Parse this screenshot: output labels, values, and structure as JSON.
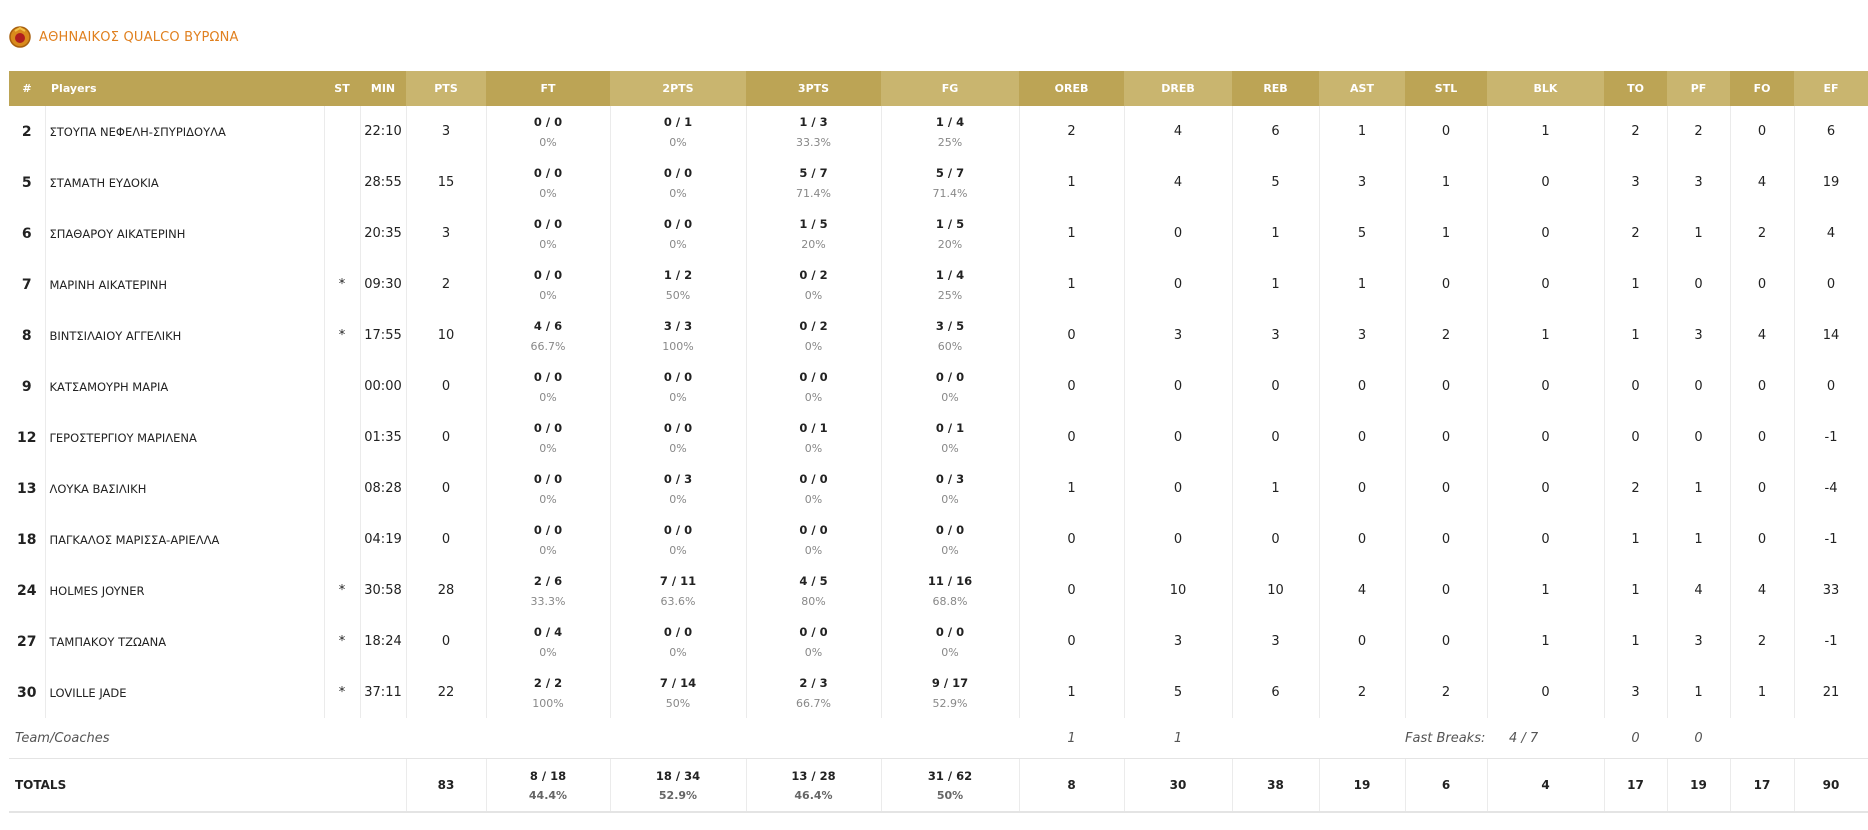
{
  "header": {
    "team": "ΑΘΗΝΑΙΚΟΣ QUALCO ΒΥΡΩΝΑ"
  },
  "table": {
    "columns": [
      "#",
      "Players",
      "ST",
      "MIN",
      "PTS",
      "FT",
      "2PTS",
      "3PTS",
      "FG",
      "OREB",
      "DREB",
      "REB",
      "AST",
      "STL",
      "BLK",
      "TO",
      "PF",
      "FO",
      "EF"
    ],
    "rows": [
      [
        "2",
        "ΣΤΟΥΠΑ ΝΕΦΕΛΗ-ΣΠΥΡΙΔΟΥΛΑ",
        null,
        "22:10",
        "3",
        [
          "0 / 0",
          "0%"
        ],
        [
          "0 / 1",
          "0%"
        ],
        [
          "1 / 3",
          "33.3%"
        ],
        [
          "1 / 4",
          "25%"
        ],
        "2",
        "4",
        "6",
        "1",
        "0",
        "1",
        "2",
        "2",
        "0",
        "6"
      ],
      [
        "5",
        "ΣΤΑΜΑΤΗ ΕΥΔΟΚΙΑ",
        null,
        "28:55",
        "15",
        [
          "0 / 0",
          "0%"
        ],
        [
          "0 / 0",
          "0%"
        ],
        [
          "5 / 7",
          "71.4%"
        ],
        [
          "5 / 7",
          "71.4%"
        ],
        "1",
        "4",
        "5",
        "3",
        "1",
        "0",
        "3",
        "3",
        "4",
        "19"
      ],
      [
        "6",
        "ΣΠΑΘΑΡΟΥ ΑΙΚΑΤΕΡΙΝΗ",
        null,
        "20:35",
        "3",
        [
          "0 / 0",
          "0%"
        ],
        [
          "0 / 0",
          "0%"
        ],
        [
          "1 / 5",
          "20%"
        ],
        [
          "1 / 5",
          "20%"
        ],
        "1",
        "0",
        "1",
        "5",
        "1",
        "0",
        "2",
        "1",
        "2",
        "4"
      ],
      [
        "7",
        "ΜΑΡΙΝΗ ΑΙΚΑΤΕΡΙΝΗ",
        "*",
        "09:30",
        "2",
        [
          "0 / 0",
          "0%"
        ],
        [
          "1 / 2",
          "50%"
        ],
        [
          "0 / 2",
          "0%"
        ],
        [
          "1 / 4",
          "25%"
        ],
        "1",
        "0",
        "1",
        "1",
        "0",
        "0",
        "1",
        "0",
        "0",
        "0"
      ],
      [
        "8",
        "ΒΙΝΤΣΙΛΑΙΟΥ ΑΓΓΕΛΙΚΗ",
        "*",
        "17:55",
        "10",
        [
          "4 / 6",
          "66.7%"
        ],
        [
          "3 / 3",
          "100%"
        ],
        [
          "0 / 2",
          "0%"
        ],
        [
          "3 / 5",
          "60%"
        ],
        "0",
        "3",
        "3",
        "3",
        "2",
        "1",
        "1",
        "3",
        "4",
        "14"
      ],
      [
        "9",
        "ΚΑΤΣΑΜΟΥΡΗ ΜΑΡΙΑ",
        null,
        "00:00",
        "0",
        [
          "0 / 0",
          "0%"
        ],
        [
          "0 / 0",
          "0%"
        ],
        [
          "0 / 0",
          "0%"
        ],
        [
          "0 / 0",
          "0%"
        ],
        "0",
        "0",
        "0",
        "0",
        "0",
        "0",
        "0",
        "0",
        "0",
        "0"
      ],
      [
        "12",
        "ΓΕΡΟΣΤΕΡΓΙΟΥ ΜΑΡΙΛΕΝΑ",
        null,
        "01:35",
        "0",
        [
          "0 / 0",
          "0%"
        ],
        [
          "0 / 0",
          "0%"
        ],
        [
          "0 / 1",
          "0%"
        ],
        [
          "0 / 1",
          "0%"
        ],
        "0",
        "0",
        "0",
        "0",
        "0",
        "0",
        "0",
        "0",
        "0",
        "-1"
      ],
      [
        "13",
        "ΛΟΥΚΑ ΒΑΣΙΛΙΚΗ",
        null,
        "08:28",
        "0",
        [
          "0 / 0",
          "0%"
        ],
        [
          "0 / 3",
          "0%"
        ],
        [
          "0 / 0",
          "0%"
        ],
        [
          "0 / 3",
          "0%"
        ],
        "1",
        "0",
        "1",
        "0",
        "0",
        "0",
        "2",
        "1",
        "0",
        "-4"
      ],
      [
        "18",
        "ΠΑΓΚΑΛΟΣ ΜΑΡΙΣΣΑ-ΑΡΙΕΛΛΑ",
        null,
        "04:19",
        "0",
        [
          "0 / 0",
          "0%"
        ],
        [
          "0 / 0",
          "0%"
        ],
        [
          "0 / 0",
          "0%"
        ],
        [
          "0 / 0",
          "0%"
        ],
        "0",
        "0",
        "0",
        "0",
        "0",
        "0",
        "1",
        "1",
        "0",
        "-1"
      ],
      [
        "24",
        "HOLMES JOYNER",
        "*",
        "30:58",
        "28",
        [
          "2 / 6",
          "33.3%"
        ],
        [
          "7 / 11",
          "63.6%"
        ],
        [
          "4 / 5",
          "80%"
        ],
        [
          "11 / 16",
          "68.8%"
        ],
        "0",
        "10",
        "10",
        "4",
        "0",
        "1",
        "1",
        "4",
        "4",
        "33"
      ],
      [
        "27",
        "ΤΑΜΠΑΚΟΥ ΤΖΩΑΝΑ",
        "*",
        "18:24",
        "0",
        [
          "0 / 4",
          "0%"
        ],
        [
          "0 / 0",
          "0%"
        ],
        [
          "0 / 0",
          "0%"
        ],
        [
          "0 / 0",
          "0%"
        ],
        "0",
        "3",
        "3",
        "0",
        "0",
        "1",
        "1",
        "3",
        "2",
        "-1"
      ],
      [
        "30",
        "LOVILLE JADE",
        "*",
        "37:11",
        "22",
        [
          "2 / 2",
          "100%"
        ],
        [
          "7 / 14",
          "50%"
        ],
        [
          "2 / 3",
          "66.7%"
        ],
        [
          "9 / 17",
          "52.9%"
        ],
        "1",
        "5",
        "6",
        "2",
        "2",
        "0",
        "3",
        "1",
        "1",
        "21"
      ]
    ],
    "team_row": {
      "label": "Team/Coaches",
      "oreb": "1",
      "dreb": "1",
      "fast_breaks_label": "Fast Breaks:",
      "fast_breaks": "4 / 7",
      "to": "0",
      "pf": "0"
    },
    "totals": {
      "label": "TOTALS",
      "cells": [
        "83",
        [
          "8 / 18",
          "44.4%"
        ],
        [
          "18 / 34",
          "52.9%"
        ],
        [
          "13 / 28",
          "46.4%"
        ],
        [
          "31 / 62",
          "50%"
        ],
        "8",
        "30",
        "38",
        "19",
        "6",
        "4",
        "17",
        "19",
        "17",
        "90"
      ]
    }
  }
}
